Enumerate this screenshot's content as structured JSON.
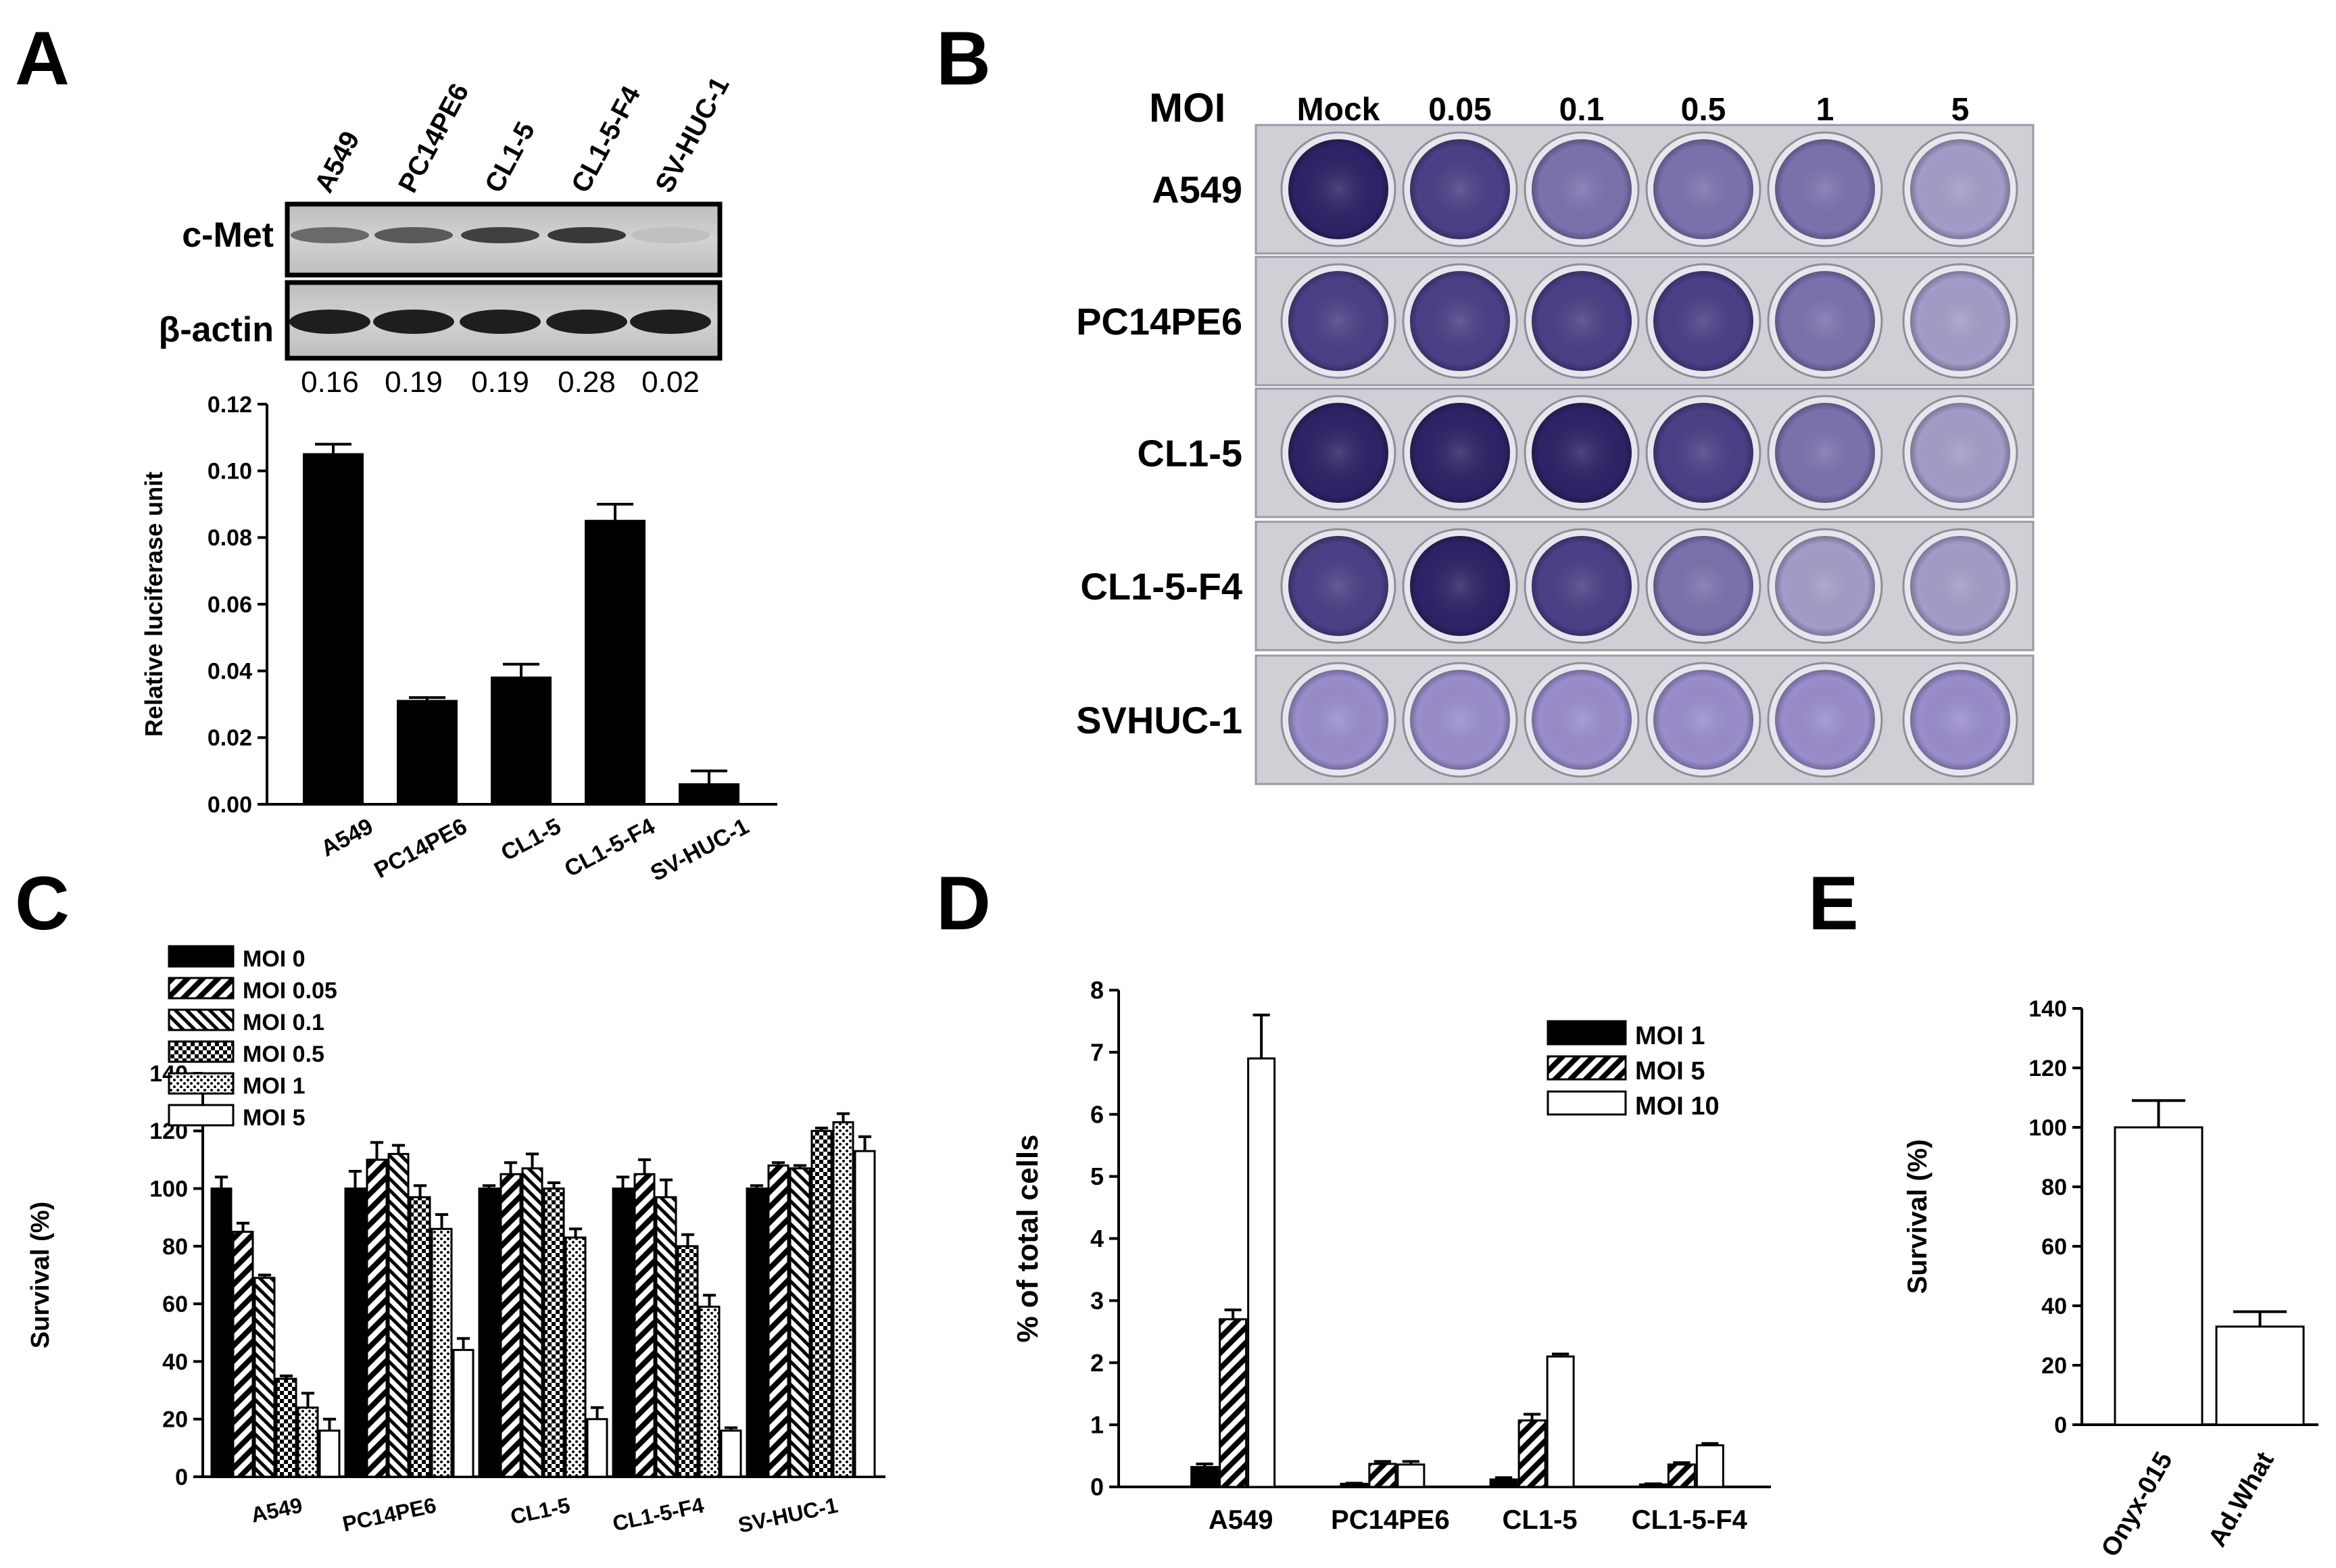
{
  "panels": {
    "A": "A",
    "B": "B",
    "C": "C",
    "D": "D",
    "E": "E"
  },
  "blot": {
    "lanes": [
      "A549",
      "PC14PE6",
      "CL1-5",
      "CL1-5-F4",
      "SV-HUC-1"
    ],
    "rows": [
      "c-Met",
      "β-actin"
    ],
    "ratios": [
      "0.16",
      "0.19",
      "0.19",
      "0.28",
      "0.02"
    ],
    "cmet_intensity": [
      0.55,
      0.65,
      0.8,
      0.85,
      0.05
    ]
  },
  "plate": {
    "moi_label": "MOI",
    "columns": [
      "Mock",
      "0.05",
      "0.1",
      "0.5",
      "1",
      "5"
    ],
    "rows": [
      "A549",
      "PC14PE6",
      "CL1-5",
      "CL1-5-F4",
      "SVHUC-1"
    ],
    "colors": {
      "dark": "#2f2367",
      "medium": "#4b3f86",
      "light": "#7b71ad",
      "faint": "#a39cc8",
      "pale": "#9a8dcc"
    },
    "well_tone": [
      [
        "dark",
        "medium",
        "light",
        "light",
        "light",
        "faint"
      ],
      [
        "medium",
        "medium",
        "medium",
        "medium",
        "light",
        "faint"
      ],
      [
        "dark",
        "dark",
        "dark",
        "medium",
        "light",
        "faint"
      ],
      [
        "medium",
        "dark",
        "medium",
        "light",
        "faint",
        "faint"
      ],
      [
        "pale",
        "pale",
        "pale",
        "pale",
        "pale",
        "pale"
      ]
    ]
  },
  "chart_data": [
    {
      "id": "A",
      "type": "bar",
      "categories": [
        "A549",
        "PC14PE6",
        "CL1-5",
        "CL1-5-F4",
        "SV-HUC-1"
      ],
      "values": [
        0.105,
        0.031,
        0.038,
        0.085,
        0.006
      ],
      "errors": [
        0.003,
        0.001,
        0.004,
        0.005,
        0.004
      ],
      "ylabel": "Relative luciferase unit",
      "ylim": [
        0,
        0.12
      ],
      "yticks": [
        "0.00",
        "0.02",
        "0.04",
        "0.06",
        "0.08",
        "0.10",
        "0.12"
      ]
    },
    {
      "id": "C",
      "type": "bar",
      "categories": [
        "A549",
        "PC14PE6",
        "CL1-5",
        "CL1-5-F4",
        "SV-HUC-1"
      ],
      "series": [
        {
          "name": "MOI 0",
          "values": [
            100,
            100,
            100,
            100,
            100
          ],
          "errors": [
            4,
            6,
            1,
            4,
            1
          ]
        },
        {
          "name": "MOI 0.05",
          "values": [
            85,
            110,
            105,
            105,
            108
          ],
          "errors": [
            3,
            6,
            4,
            5,
            1
          ]
        },
        {
          "name": "MOI 0.1",
          "values": [
            69,
            112,
            107,
            97,
            107
          ],
          "errors": [
            1,
            3,
            5,
            6,
            1
          ]
        },
        {
          "name": "MOI 0.5",
          "values": [
            34,
            97,
            100,
            80,
            120
          ],
          "errors": [
            1,
            4,
            2,
            4,
            1
          ]
        },
        {
          "name": "MOI 1",
          "values": [
            24,
            86,
            83,
            59,
            123
          ],
          "errors": [
            5,
            5,
            3,
            4,
            3
          ]
        },
        {
          "name": "MOI 5",
          "values": [
            16,
            44,
            20,
            16,
            113
          ],
          "errors": [
            4,
            4,
            4,
            1,
            5
          ]
        }
      ],
      "ylabel": "Survival (%)",
      "ylim": [
        0,
        140
      ],
      "yticks": [
        "0",
        "20",
        "40",
        "60",
        "80",
        "100",
        "120",
        "140"
      ]
    },
    {
      "id": "D",
      "type": "bar",
      "categories": [
        "A549",
        "PC14PE6",
        "CL1-5",
        "CL1-5-F4"
      ],
      "series": [
        {
          "name": "MOI 1",
          "values": [
            0.32,
            0.05,
            0.12,
            0.04
          ],
          "errors": [
            0.05,
            0.01,
            0.03,
            0.01
          ]
        },
        {
          "name": "MOI 5",
          "values": [
            2.7,
            0.37,
            1.07,
            0.36
          ],
          "errors": [
            0.15,
            0.04,
            0.1,
            0.03
          ]
        },
        {
          "name": "MOI 10",
          "values": [
            6.9,
            0.36,
            2.1,
            0.67
          ],
          "errors": [
            0.7,
            0.05,
            0.04,
            0.03
          ]
        }
      ],
      "ylabel": "% of total cells",
      "ylim": [
        0,
        8
      ],
      "yticks": [
        "0",
        "1",
        "2",
        "3",
        "4",
        "5",
        "6",
        "7",
        "8"
      ]
    },
    {
      "id": "E",
      "type": "bar",
      "categories": [
        "Onyx-015",
        "Ad.What"
      ],
      "values": [
        100,
        33
      ],
      "errors": [
        9,
        5
      ],
      "ylabel": "Survival (%)",
      "ylim": [
        0,
        140
      ],
      "yticks": [
        "0",
        "20",
        "40",
        "60",
        "80",
        "100",
        "120",
        "140"
      ]
    }
  ]
}
